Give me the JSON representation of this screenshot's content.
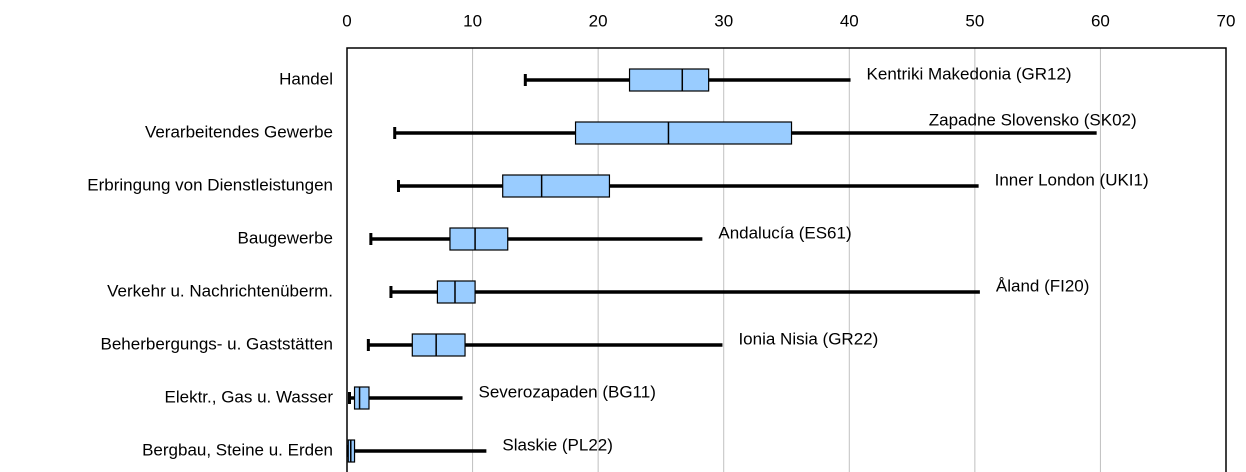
{
  "chart_data": {
    "type": "boxplot",
    "categories": [
      "Handel",
      "Verarbeitendes Gewerbe",
      "Erbringung von Dienstleistungen",
      "Baugewerbe",
      "Verkehr u. Nachrichtenüberm.",
      "Beherbergungs- u. Gaststätten",
      "Elektr., Gas u. Wasser",
      "Bergbau, Steine u. Erden"
    ],
    "min": [
      14.2,
      3.8,
      4.1,
      1.9,
      3.5,
      1.7,
      0.2,
      0.1
    ],
    "q1": [
      22.5,
      18.2,
      12.4,
      8.2,
      7.2,
      5.2,
      0.6,
      0.1
    ],
    "median": [
      26.7,
      25.6,
      15.5,
      10.2,
      8.6,
      7.1,
      1.0,
      0.3
    ],
    "q3": [
      28.8,
      35.4,
      20.9,
      12.8,
      10.2,
      9.4,
      1.75,
      0.6
    ],
    "max": [
      40.1,
      59.7,
      50.3,
      28.3,
      50.4,
      29.9,
      9.2,
      11.1
    ],
    "annotations": [
      "Kentriki Makedonia (GR12)",
      "Zapadne Slovensko (SK02)",
      "Inner London (UKI1)",
      "Andalucía (ES61)",
      "Åland (FI20)",
      "Ionia Nisia (GR22)",
      "Severozapaden (BG11)",
      "Slaskie (PL22)"
    ],
    "color": "#99ccff",
    "xlim": [
      0,
      70
    ],
    "xticks": [
      0,
      10,
      20,
      30,
      40,
      50,
      60,
      70
    ],
    "grid": true
  }
}
